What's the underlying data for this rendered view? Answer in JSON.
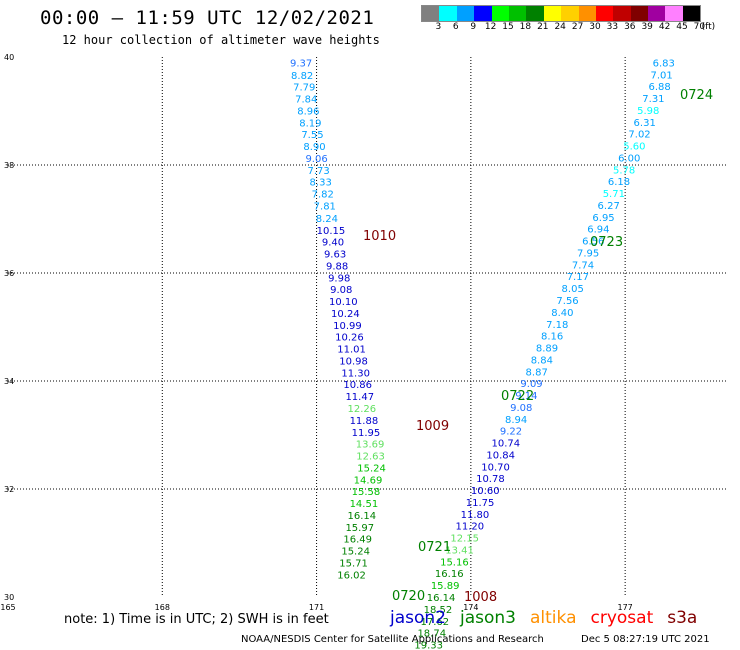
{
  "header": {
    "title": "00:00 – 11:59 UTC 12/02/2021",
    "subtitle": "12 hour collection of altimeter wave heights"
  },
  "legend": {
    "unit_label": "(ft)",
    "bins": [
      {
        "label": "3",
        "color": "#808080"
      },
      {
        "label": "6",
        "color": "#00ffff"
      },
      {
        "label": "9",
        "color": "#00a0ff"
      },
      {
        "label": "12",
        "color": "#0000ff"
      },
      {
        "label": "15",
        "color": "#00ff00"
      },
      {
        "label": "18",
        "color": "#00c000"
      },
      {
        "label": "21",
        "color": "#008000"
      },
      {
        "label": "24",
        "color": "#ffff00"
      },
      {
        "label": "27",
        "color": "#ffd000"
      },
      {
        "label": "30",
        "color": "#ff9000"
      },
      {
        "label": "33",
        "color": "#ff0000"
      },
      {
        "label": "36",
        "color": "#c00000"
      },
      {
        "label": "39",
        "color": "#800000"
      },
      {
        "label": "42",
        "color": "#a000a0"
      },
      {
        "label": "45",
        "color": "#ff80ff"
      },
      {
        "label": "70",
        "color": "#000000"
      }
    ]
  },
  "map": {
    "lon_range": [
      165,
      179
    ],
    "lat_range": [
      30,
      40
    ],
    "lon_ticks": [
      "165",
      "168",
      "171",
      "174",
      "177"
    ],
    "lat_ticks": [
      "40",
      "38",
      "36",
      "34",
      "32",
      "30"
    ]
  },
  "tracks": [
    {
      "name": "jason2",
      "color": "#0000cc",
      "points": [
        [
          170.7,
          39.9,
          "9.37"
        ],
        [
          170.82,
          33.2,
          "11.47"
        ]
      ]
    },
    {
      "name": "jason3",
      "color": "#007800",
      "points": []
    }
  ],
  "wave_labels": [
    {
      "text": "9.37",
      "lon": 170.7,
      "lat": 39.9,
      "color": "#2070ff"
    },
    {
      "text": "8.82",
      "lon": 170.72,
      "lat": 39.67,
      "color": "#00a0ff"
    },
    {
      "text": "7.79",
      "lon": 170.76,
      "lat": 39.45,
      "color": "#00a0ff"
    },
    {
      "text": "7.84",
      "lon": 170.8,
      "lat": 39.23,
      "color": "#00a0ff"
    },
    {
      "text": "8.96",
      "lon": 170.84,
      "lat": 39.01,
      "color": "#00a0ff"
    },
    {
      "text": "8.19",
      "lon": 170.88,
      "lat": 38.79,
      "color": "#00a0ff"
    },
    {
      "text": "7.55",
      "lon": 170.92,
      "lat": 38.57,
      "color": "#00a0ff"
    },
    {
      "text": "8.90",
      "lon": 170.96,
      "lat": 38.35,
      "color": "#00a0ff"
    },
    {
      "text": "9.06",
      "lon": 171.0,
      "lat": 38.13,
      "color": "#2070ff"
    },
    {
      "text": "7.73",
      "lon": 171.04,
      "lat": 37.91,
      "color": "#00a0ff"
    },
    {
      "text": "8.33",
      "lon": 171.08,
      "lat": 37.69,
      "color": "#00a0ff"
    },
    {
      "text": "7.82",
      "lon": 171.12,
      "lat": 37.47,
      "color": "#00a0ff"
    },
    {
      "text": "7.81",
      "lon": 171.16,
      "lat": 37.25,
      "color": "#00a0ff"
    },
    {
      "text": "8.24",
      "lon": 171.2,
      "lat": 37.02,
      "color": "#00a0ff"
    },
    {
      "text": "10.15",
      "lon": 171.28,
      "lat": 36.8,
      "color": "#0000cc"
    },
    {
      "text": "9.40",
      "lon": 171.32,
      "lat": 36.58,
      "color": "#0000cc"
    },
    {
      "text": "9.63",
      "lon": 171.36,
      "lat": 36.36,
      "color": "#0000cc"
    },
    {
      "text": "9.88",
      "lon": 171.4,
      "lat": 36.14,
      "color": "#0000cc"
    },
    {
      "text": "9.98",
      "lon": 171.44,
      "lat": 35.92,
      "color": "#0000cc"
    },
    {
      "text": "9.08",
      "lon": 171.48,
      "lat": 35.7,
      "color": "#0000cc"
    },
    {
      "text": "10.10",
      "lon": 171.52,
      "lat": 35.48,
      "color": "#0000cc"
    },
    {
      "text": "10.24",
      "lon": 171.56,
      "lat": 35.26,
      "color": "#0000cc"
    },
    {
      "text": "10.99",
      "lon": 171.6,
      "lat": 35.04,
      "color": "#0000cc"
    },
    {
      "text": "10.26",
      "lon": 171.64,
      "lat": 34.82,
      "color": "#0000cc"
    },
    {
      "text": "11.01",
      "lon": 171.68,
      "lat": 34.6,
      "color": "#0000cc"
    },
    {
      "text": "10.98",
      "lon": 171.72,
      "lat": 34.38,
      "color": "#0000cc"
    },
    {
      "text": "11.30",
      "lon": 171.76,
      "lat": 34.16,
      "color": "#0000cc"
    },
    {
      "text": "10.86",
      "lon": 171.8,
      "lat": 33.94,
      "color": "#0000cc"
    },
    {
      "text": "11.47",
      "lon": 171.84,
      "lat": 33.72,
      "color": "#0000cc"
    },
    {
      "text": "12.26",
      "lon": 171.88,
      "lat": 33.5,
      "color": "#60e060"
    },
    {
      "text": "11.88",
      "lon": 171.92,
      "lat": 33.28,
      "color": "#0000cc"
    },
    {
      "text": "11.95",
      "lon": 171.96,
      "lat": 33.06,
      "color": "#0000cc"
    },
    {
      "text": "13.69",
      "lon": 172.04,
      "lat": 32.84,
      "color": "#60e060"
    },
    {
      "text": "12.63",
      "lon": 172.05,
      "lat": 32.62,
      "color": "#60e060"
    },
    {
      "text": "15.24",
      "lon": 172.07,
      "lat": 32.4,
      "color": "#00c000"
    },
    {
      "text": "14.69",
      "lon": 172.0,
      "lat": 32.18,
      "color": "#00c000"
    },
    {
      "text": "15.58",
      "lon": 171.96,
      "lat": 31.96,
      "color": "#00c000"
    },
    {
      "text": "14.51",
      "lon": 171.92,
      "lat": 31.74,
      "color": "#00c000"
    },
    {
      "text": "16.14",
      "lon": 171.88,
      "lat": 31.52,
      "color": "#008000"
    },
    {
      "text": "15.97",
      "lon": 171.84,
      "lat": 31.3,
      "color": "#008000"
    },
    {
      "text": "16.49",
      "lon": 171.8,
      "lat": 31.08,
      "color": "#008000"
    },
    {
      "text": "15.24",
      "lon": 171.76,
      "lat": 30.86,
      "color": "#008000"
    },
    {
      "text": "15.71",
      "lon": 171.72,
      "lat": 30.64,
      "color": "#008000"
    },
    {
      "text": "16.02",
      "lon": 171.68,
      "lat": 30.42,
      "color": "#008000"
    },
    {
      "text": "6.83",
      "lon": 177.75,
      "lat": 39.9,
      "color": "#00a0ff"
    },
    {
      "text": "7.01",
      "lon": 177.71,
      "lat": 39.68,
      "color": "#00a0ff"
    },
    {
      "text": "6.88",
      "lon": 177.67,
      "lat": 39.46,
      "color": "#00a0ff"
    },
    {
      "text": "7.31",
      "lon": 177.55,
      "lat": 39.24,
      "color": "#00a0ff"
    },
    {
      "text": "5.98",
      "lon": 177.45,
      "lat": 39.02,
      "color": "#00ffff"
    },
    {
      "text": "6.31",
      "lon": 177.38,
      "lat": 38.8,
      "color": "#00a0ff"
    },
    {
      "text": "7.02",
      "lon": 177.28,
      "lat": 38.58,
      "color": "#00a0ff"
    },
    {
      "text": "5.60",
      "lon": 177.18,
      "lat": 38.36,
      "color": "#00ffff"
    },
    {
      "text": "6.00",
      "lon": 177.08,
      "lat": 38.14,
      "color": "#00a0ff"
    },
    {
      "text": "5.78",
      "lon": 176.98,
      "lat": 37.92,
      "color": "#00ffff"
    },
    {
      "text": "6.18",
      "lon": 176.88,
      "lat": 37.7,
      "color": "#00a0ff"
    },
    {
      "text": "5.71",
      "lon": 176.78,
      "lat": 37.48,
      "color": "#00ffff"
    },
    {
      "text": "6.27",
      "lon": 176.68,
      "lat": 37.26,
      "color": "#00a0ff"
    },
    {
      "text": "6.95",
      "lon": 176.58,
      "lat": 37.04,
      "color": "#00a0ff"
    },
    {
      "text": "6.94",
      "lon": 176.48,
      "lat": 36.82,
      "color": "#00a0ff"
    },
    {
      "text": "6.56",
      "lon": 176.38,
      "lat": 36.6,
      "color": "#00a0ff"
    },
    {
      "text": "7.95",
      "lon": 176.28,
      "lat": 36.38,
      "color": "#00a0ff"
    },
    {
      "text": "7.74",
      "lon": 176.18,
      "lat": 36.16,
      "color": "#00a0ff"
    },
    {
      "text": "7.17",
      "lon": 176.08,
      "lat": 35.94,
      "color": "#00a0ff"
    },
    {
      "text": "8.05",
      "lon": 175.98,
      "lat": 35.72,
      "color": "#00a0ff"
    },
    {
      "text": "7.56",
      "lon": 175.88,
      "lat": 35.5,
      "color": "#00a0ff"
    },
    {
      "text": "8.40",
      "lon": 175.78,
      "lat": 35.28,
      "color": "#00a0ff"
    },
    {
      "text": "7.18",
      "lon": 175.68,
      "lat": 35.06,
      "color": "#00a0ff"
    },
    {
      "text": "8.16",
      "lon": 175.58,
      "lat": 34.84,
      "color": "#00a0ff"
    },
    {
      "text": "8.89",
      "lon": 175.48,
      "lat": 34.62,
      "color": "#00a0ff"
    },
    {
      "text": "8.84",
      "lon": 175.38,
      "lat": 34.4,
      "color": "#00a0ff"
    },
    {
      "text": "8.87",
      "lon": 175.28,
      "lat": 34.18,
      "color": "#00a0ff"
    },
    {
      "text": "9.09",
      "lon": 175.18,
      "lat": 33.96,
      "color": "#2070ff"
    },
    {
      "text": "9.14",
      "lon": 175.08,
      "lat": 33.74,
      "color": "#2070ff"
    },
    {
      "text": "9.08",
      "lon": 174.98,
      "lat": 33.52,
      "color": "#2070ff"
    },
    {
      "text": "8.94",
      "lon": 174.88,
      "lat": 33.3,
      "color": "#00a0ff"
    },
    {
      "text": "9.22",
      "lon": 174.78,
      "lat": 33.08,
      "color": "#2070ff"
    },
    {
      "text": "10.74",
      "lon": 174.68,
      "lat": 32.86,
      "color": "#0000cc"
    },
    {
      "text": "10.84",
      "lon": 174.58,
      "lat": 32.64,
      "color": "#0000cc"
    },
    {
      "text": "10.70",
      "lon": 174.48,
      "lat": 32.42,
      "color": "#0000cc"
    },
    {
      "text": "10.78",
      "lon": 174.38,
      "lat": 32.2,
      "color": "#0000cc"
    },
    {
      "text": "10.60",
      "lon": 174.28,
      "lat": 31.98,
      "color": "#0000cc"
    },
    {
      "text": "11.75",
      "lon": 174.18,
      "lat": 31.76,
      "color": "#0000cc"
    },
    {
      "text": "11.80",
      "lon": 174.08,
      "lat": 31.54,
      "color": "#0000cc"
    },
    {
      "text": "11.20",
      "lon": 173.98,
      "lat": 31.32,
      "color": "#0000cc"
    },
    {
      "text": "12.15",
      "lon": 173.88,
      "lat": 31.1,
      "color": "#60e060"
    },
    {
      "text": "13.41",
      "lon": 173.78,
      "lat": 30.88,
      "color": "#60e060"
    },
    {
      "text": "15.16",
      "lon": 173.68,
      "lat": 30.66,
      "color": "#00c000"
    },
    {
      "text": "16.16",
      "lon": 173.58,
      "lat": 30.44,
      "color": "#008000"
    },
    {
      "text": "15.89",
      "lon": 173.5,
      "lat": 30.22,
      "color": "#00c000"
    },
    {
      "text": "16.14",
      "lon": 173.42,
      "lat": 30.0,
      "color": "#008000"
    },
    {
      "text": "18.52",
      "lon": 173.36,
      "lat": 29.78,
      "color": "#008000"
    },
    {
      "text": "17.62",
      "lon": 173.3,
      "lat": 29.56,
      "color": "#008000"
    },
    {
      "text": "18.74",
      "lon": 173.24,
      "lat": 29.34,
      "color": "#008000"
    },
    {
      "text": "19.33",
      "lon": 173.18,
      "lat": 29.12,
      "color": "#008000"
    }
  ],
  "cycle_labels": [
    {
      "text": "0724",
      "color": "#008000"
    },
    {
      "text": "1010",
      "color": "#800000"
    },
    {
      "text": "0723",
      "color": "#008000"
    },
    {
      "text": "0722",
      "color": "#008000"
    },
    {
      "text": "1009",
      "color": "#800000"
    },
    {
      "text": "0721",
      "color": "#008000"
    },
    {
      "text": "0720",
      "color": "#008000"
    },
    {
      "text": "1008",
      "color": "#800000"
    }
  ],
  "footer": {
    "note": "note:  1) Time is in UTC; 2) SWH is in feet",
    "satellites": [
      {
        "name": "jason2",
        "color": "#0000cc"
      },
      {
        "name": "jason3",
        "color": "#008000"
      },
      {
        "name": "altika",
        "color": "#ff9000"
      },
      {
        "name": "cryosat",
        "color": "#ff0000"
      },
      {
        "name": "s3a",
        "color": "#800000"
      }
    ],
    "credit": "NOAA/NESDIS Center for Satellite Applications and Research",
    "timestamp": "Dec  5 08:27:19 UTC 2021"
  }
}
